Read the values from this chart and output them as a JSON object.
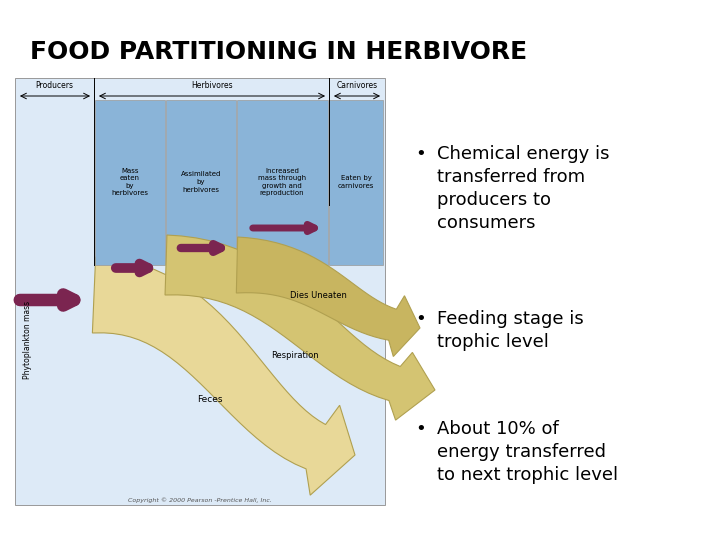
{
  "title": "FOOD PARTITIONING IN HERBIVORE",
  "title_fontsize": 18,
  "title_fontweight": "bold",
  "bg_color": "#ffffff",
  "bullet_points": [
    "Chemical energy is\ntransferred from\nproducers to\nconsumers",
    "Feeding stage is\ntrophic level",
    "About 10% of\nenergy transferred\nto next trophic level"
  ],
  "bullet_fontsize": 13,
  "diagram_labels": {
    "producers": "Producers",
    "herbivores": "Herbivores",
    "carnivores": "Carnivores",
    "phyto": "Phytoplankton mass",
    "mass_eaten": "Mass\neaten\nby\nherbivores",
    "assimilated": "Assimilated\nby\nherbivores",
    "increased_mass": "Increased\nmass through\ngrowth and\nreproduction",
    "eaten_by": "Eaten by\ncarnivores",
    "dies_uneaten": "Dies Uneaten",
    "respiration": "Respiration",
    "feces": "Feces",
    "copyright": "Copyright © 2000 Pearson -Prentice Hall, Inc."
  },
  "colors": {
    "light_blue_bg": "#ddeaf7",
    "blue_box": "#8ab4d8",
    "tan_dark": "#c8b560",
    "tan_mid": "#d4c472",
    "tan_light": "#e8d898",
    "tan_vlight": "#f0e8bc",
    "dark_red_arrow": "#7b2550",
    "text_dark": "#000000",
    "white": "#ffffff",
    "box_border": "#999999",
    "arrow_border": "#b0a050"
  }
}
